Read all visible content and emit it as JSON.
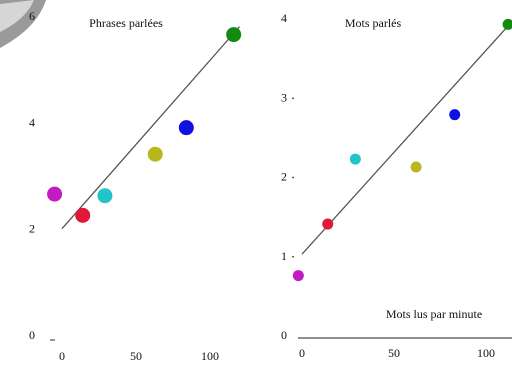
{
  "chart_data": [
    {
      "type": "scatter",
      "title": "Phrases parlées",
      "xlim": [
        0,
        120
      ],
      "ylim": [
        0,
        6
      ],
      "x_ticks": [
        "0",
        "50",
        "100"
      ],
      "y_ticks": [
        "0",
        "2",
        "4",
        "6"
      ],
      "fit_line": {
        "x": [
          0,
          120
        ],
        "y": [
          2.0,
          5.8
        ]
      },
      "points": [
        {
          "x": -5,
          "y": 2.65,
          "color": "#c21bc4"
        },
        {
          "x": 14,
          "y": 2.25,
          "color": "#e0183a"
        },
        {
          "x": 29,
          "y": 2.62,
          "color": "#22c3c9"
        },
        {
          "x": 63,
          "y": 3.4,
          "color": "#b8b81c"
        },
        {
          "x": 84,
          "y": 3.9,
          "color": "#1010e0"
        },
        {
          "x": 116,
          "y": 5.65,
          "color": "#128a12"
        }
      ]
    },
    {
      "type": "scatter",
      "title": "Mots parlés",
      "xlabel": "Mots lus par minute",
      "xlim": [
        0,
        120
      ],
      "ylim": [
        0,
        4
      ],
      "x_ticks": [
        "0",
        "50",
        "100"
      ],
      "y_ticks": [
        "0",
        "1",
        "2",
        "3",
        "4"
      ],
      "fit_line": {
        "x": [
          0,
          112
        ],
        "y": [
          1.02,
          3.9
        ]
      },
      "points": [
        {
          "x": -2,
          "y": 0.75,
          "color": "#c21bc4"
        },
        {
          "x": 14,
          "y": 1.4,
          "color": "#e0183a"
        },
        {
          "x": 29,
          "y": 2.22,
          "color": "#22c3c9"
        },
        {
          "x": 62,
          "y": 2.12,
          "color": "#b8b81c"
        },
        {
          "x": 83,
          "y": 2.78,
          "color": "#1010e0"
        },
        {
          "x": 112,
          "y": 3.92,
          "color": "#128a12"
        }
      ]
    }
  ]
}
